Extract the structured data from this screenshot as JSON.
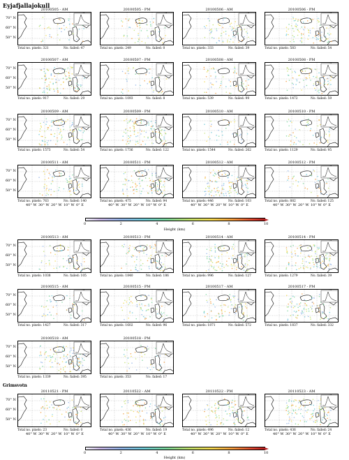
{
  "section1": {
    "title": "Eyjafjallajokull"
  },
  "section2": {
    "title": "Grimsvotn"
  },
  "panels": [
    {
      "label": "20100505 - AM",
      "pixels": "Total no. pixels: 321",
      "failed": "No. failed: 47"
    },
    {
      "label": "20100505 - PM",
      "pixels": "Total no. pixels: 249",
      "failed": "No. failed: 0"
    },
    {
      "label": "20100506 - AM",
      "pixels": "Total no. pixels: 333",
      "failed": "No. failed: 39"
    },
    {
      "label": "20100506 - PM",
      "pixels": "Total no. pixels: 583",
      "failed": "No. failed: 54"
    },
    {
      "label": "20100507 - AM",
      "pixels": "Total no. pixels: 917",
      "failed": "No. failed: 29"
    },
    {
      "label": "20100507 - PM",
      "pixels": "Total no. pixels: 1093",
      "failed": "No. failed: 8"
    },
    {
      "label": "20100508 - AM",
      "pixels": "Total no. pixels: 539",
      "failed": "No. failed: 99"
    },
    {
      "label": "20100508 - PM",
      "pixels": "Total no. pixels: 1472",
      "failed": "No. failed: 59"
    },
    {
      "label": "20100509 - AM",
      "pixels": "Total no. pixels: 1573",
      "failed": "No. failed: 54"
    },
    {
      "label": "20100509 - PM",
      "pixels": "Total no. pixels: 1736",
      "failed": "No. failed: 122"
    },
    {
      "label": "20100510 - AM",
      "pixels": "Total no. pixels: 1544",
      "failed": "No. failed: 262"
    },
    {
      "label": "20100510 - PM",
      "pixels": "Total no. pixels: 1129",
      "failed": "No. failed: 95"
    },
    {
      "label": "20100511 - AM",
      "pixels": "Total no. pixels: 763",
      "failed": "No. failed: 140"
    },
    {
      "label": "20100511 - PM",
      "pixels": "Total no. pixels: 475",
      "failed": "No. failed: 94"
    },
    {
      "label": "20100512 - AM",
      "pixels": "Total no. pixels: 446",
      "failed": "No. failed: 103"
    },
    {
      "label": "20100512 - PM",
      "pixels": "Total no. pixels: 882",
      "failed": "No. failed: 125"
    },
    {
      "label": "20100513 - AM",
      "pixels": "Total no. pixels: 1038",
      "failed": "No. failed: 105"
    },
    {
      "label": "20100513 - PM",
      "pixels": "Total no. pixels: 1840",
      "failed": "No. failed: 186"
    },
    {
      "label": "20100514 - AM",
      "pixels": "Total no. pixels: 996",
      "failed": "No. failed: 127"
    },
    {
      "label": "20100514 - PM",
      "pixels": "Total no. pixels: 1279",
      "failed": "No. failed: 39"
    },
    {
      "label": "20100515 - AM",
      "pixels": "Total no. pixels: 1427",
      "failed": "No. failed: 317"
    },
    {
      "label": "20100515 - PM",
      "pixels": "Total no. pixels: 1602",
      "failed": "No. failed: 96"
    },
    {
      "label": "20100517 - AM",
      "pixels": "Total no. pixels: 1871",
      "failed": "No. failed: 572"
    },
    {
      "label": "20100517 - PM",
      "pixels": "Total no. pixels: 1837",
      "failed": "No. failed: 332"
    },
    {
      "label": "20100518 - AM",
      "pixels": "Total no. pixels: 1339",
      "failed": "No. failed: 395"
    },
    {
      "label": "20100518 - PM",
      "pixels": "Total no. pixels: 353",
      "failed": "No. failed: 17"
    },
    {
      "label": "20110521 - PM",
      "pixels": "Total no. pixels: 23",
      "failed": "No. failed: 0"
    },
    {
      "label": "20110522 - AM",
      "pixels": "Total no. pixels: 436",
      "failed": "No. failed: 19"
    },
    {
      "label": "20110522 - PM",
      "pixels": "Total no. pixels: 496",
      "failed": "No. failed: 12"
    },
    {
      "label": "20110523 - AM",
      "pixels": "Total no. pixels: 436",
      "failed": "No. failed: 24"
    }
  ],
  "axes": {
    "lat": [
      "70° N",
      "60° N",
      "50° N"
    ],
    "lon": [
      "40° W",
      "30° W",
      "20° W",
      "10° W",
      "0° E"
    ]
  },
  "colorbar": {
    "label": "Height (km)",
    "ticks": [
      "0",
      "2",
      "4",
      "6",
      "8",
      "10"
    ],
    "colors": [
      "#f4f4fb",
      "#c9b7e6",
      "#8fb2e6",
      "#6ec9d8",
      "#79d59a",
      "#c1e06b",
      "#f2d84f",
      "#f29b3d",
      "#d8402e",
      "#b31f1f"
    ]
  }
}
